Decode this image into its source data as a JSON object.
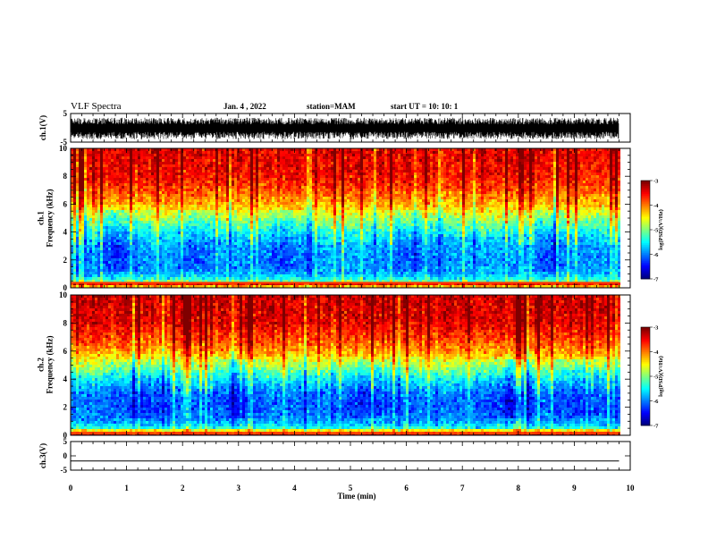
{
  "header": {
    "title": "VLF Spectra",
    "date": "Jan. 4 , 2022",
    "station": "station=MAM",
    "start": "start UT = 10: 10: 1"
  },
  "chart_data": [
    {
      "type": "line",
      "panel": "waveform-ch1",
      "ylabel": "ch.1(V)",
      "ylim": [
        -5,
        5
      ],
      "yticks": [
        "5",
        "-5"
      ],
      "xlim": [
        0,
        10
      ],
      "data_extent_min": [
        0,
        9.8
      ],
      "amplitude_band_v": [
        -4.0,
        3.5
      ]
    },
    {
      "type": "heatmap",
      "panel": "spectrogram-ch1",
      "ylabel": "ch.1\nFrequency (kHz)",
      "ylim": [
        0,
        10
      ],
      "yticks": [
        "0",
        "2",
        "4",
        "6",
        "8",
        "10"
      ],
      "xlim": [
        0,
        10
      ],
      "data_extent_min": [
        0,
        9.8
      ],
      "colorbar": {
        "label": "log(PSD)(V²/Hz)",
        "range": [
          -7,
          -3
        ],
        "ticks": [
          "-3",
          "-4",
          "-5",
          "-6",
          "-7"
        ]
      },
      "profile_khz": [
        [
          0,
          -4.6
        ],
        [
          0.3,
          -3.4
        ],
        [
          0.5,
          -5.3
        ],
        [
          1.0,
          -5.8
        ],
        [
          2.0,
          -5.9
        ],
        [
          3.0,
          -5.8
        ],
        [
          4.0,
          -5.4
        ],
        [
          5.0,
          -4.8
        ],
        [
          6.0,
          -4.2
        ],
        [
          7.0,
          -3.8
        ],
        [
          8.0,
          -3.5
        ],
        [
          10.0,
          -3.4
        ]
      ]
    },
    {
      "type": "heatmap",
      "panel": "spectrogram-ch2",
      "ylabel": "ch.2\nFrequency (kHz)",
      "ylim": [
        0,
        10
      ],
      "yticks": [
        "0",
        "2",
        "4",
        "6",
        "8",
        "10"
      ],
      "xlim": [
        0,
        10
      ],
      "data_extent_min": [
        0,
        9.8
      ],
      "colorbar": {
        "label": "log(PSD)(V²/Hz)",
        "range": [
          -7,
          -3
        ],
        "ticks": [
          "-3",
          "-4",
          "-5",
          "-6",
          "-7"
        ]
      },
      "profile_khz": [
        [
          0,
          -5.0
        ],
        [
          0.2,
          -3.6
        ],
        [
          0.5,
          -5.4
        ],
        [
          1.0,
          -5.9
        ],
        [
          2.0,
          -6.1
        ],
        [
          3.0,
          -6.0
        ],
        [
          4.0,
          -5.5
        ],
        [
          5.0,
          -4.8
        ],
        [
          6.0,
          -4.1
        ],
        [
          7.0,
          -3.7
        ],
        [
          8.0,
          -3.4
        ],
        [
          10.0,
          -3.3
        ]
      ]
    },
    {
      "type": "line",
      "panel": "waveform-ch3",
      "ylabel": "ch.3(V)",
      "ylim": [
        -5,
        5
      ],
      "yticks": [
        "5",
        "0",
        "-5"
      ],
      "xlim": [
        0,
        10
      ],
      "xlabel": "Time (min)",
      "xticks": [
        "0",
        "1",
        "2",
        "3",
        "4",
        "5",
        "6",
        "7",
        "8",
        "9",
        "10"
      ],
      "data_extent_min": [
        0,
        9.8
      ],
      "values_v": [
        [
          0,
          -1.8
        ],
        [
          9.8,
          -1.8
        ]
      ]
    }
  ],
  "jet_colors": [
    "#00007f",
    "#0000ff",
    "#007fff",
    "#00ffff",
    "#7fff7f",
    "#ffff00",
    "#ff7f00",
    "#ff0000",
    "#7f0000"
  ]
}
